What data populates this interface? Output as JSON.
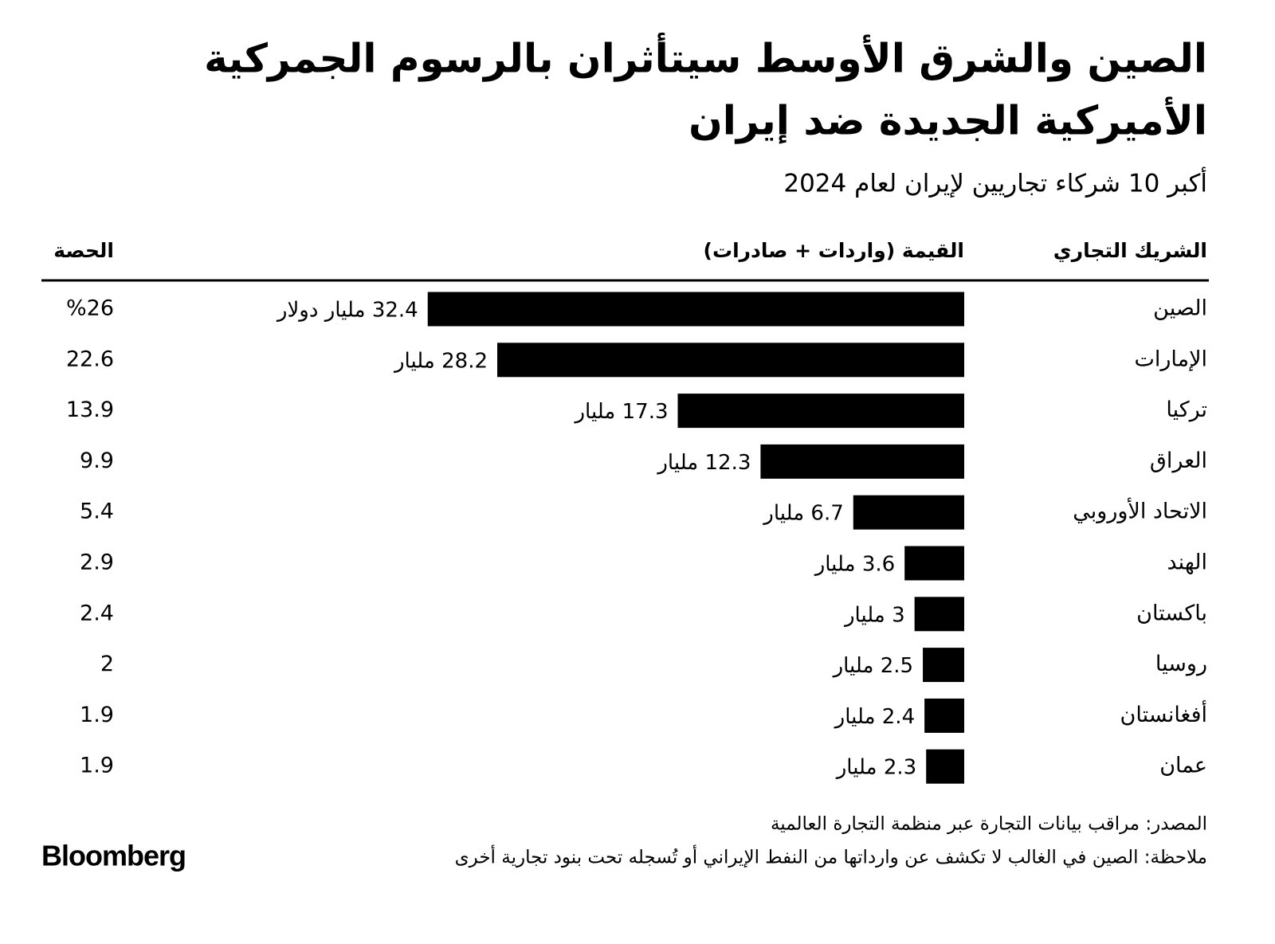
{
  "chart_data": {
    "type": "bar",
    "title": [
      "الصين والشرق الأوسط سيتأثران بالرسوم الجمركية",
      "الأميركية الجديدة ضد إيران"
    ],
    "subtitle": "أكبر 10 شركاء تجاريين لإيران لعام 2024",
    "column_headers": [
      "الشريك التجاري",
      "القيمة (واردات + صادرات)",
      "الحصة"
    ],
    "categories": [
      "الصين",
      "الإمارات",
      "تركيا",
      "العراق",
      "الاتحاد الأوروبي",
      "الهند",
      "باكستان",
      "روسيا",
      "أفغانستان",
      "عمان"
    ],
    "values": [
      32.4,
      28.2,
      17.3,
      12.3,
      6.7,
      3.6,
      3,
      2.5,
      2.4,
      2.3
    ],
    "value_labels": [
      "32.4 مليار دولار",
      "28.2 مليار",
      "17.3 مليار",
      "12.3 مليار",
      "6.7 مليار",
      "3.6 مليار",
      "3 مليار",
      "2.5 مليار",
      "2.4 مليار",
      "2.3 مليار"
    ],
    "shares": [
      "%26",
      "22.6",
      "13.9",
      "9.9",
      "5.4",
      "2.9",
      "2.4",
      "2",
      "1.9",
      "1.9"
    ],
    "color": "#000000",
    "source": "المصدر: مراقب بيانات التجارة عبر منظمة التجارة العالمية",
    "note": "ملاحظة: الصين في الغالب لا تكشف عن وارداتها من النفط الإيراني أو تُسجله تحت بنود تجارية أخرى",
    "brand": "Bloomberg"
  }
}
